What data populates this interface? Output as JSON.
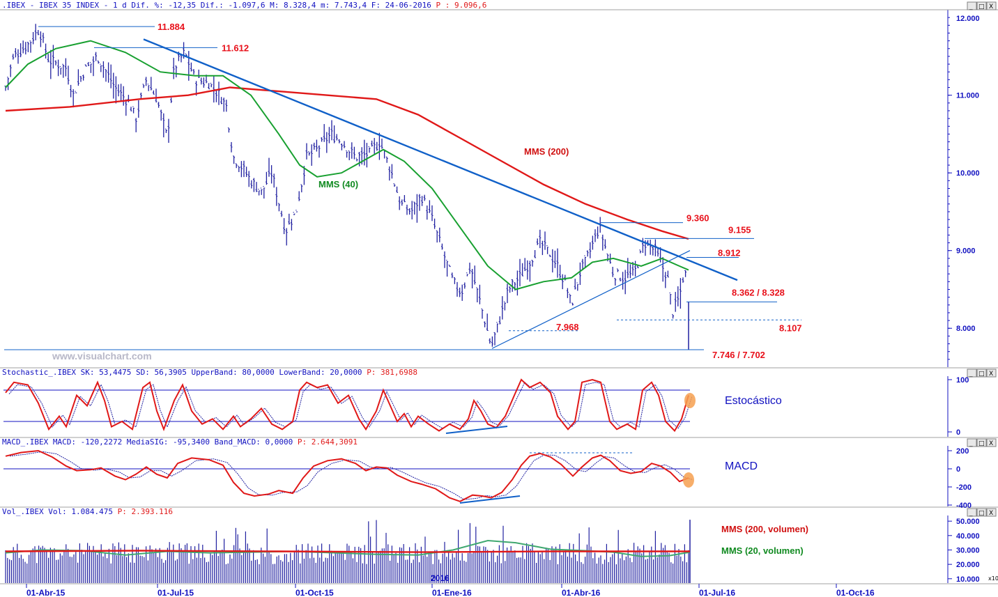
{
  "header": {
    "price": ".IBEX - IBEX 35 INDEX -  1 d Dif. %: -12,35 Dif.: -1.097,6 M: 8.328,4 m: 7.743,4 F: 24-06-2016",
    "price_p": "P : 9.096,6",
    "stoch": "Stochastic_.IBEX SK: 53,4475 SD: 56,3905 UpperBand: 80,0000 LowerBand: 20,0000",
    "stoch_p": "P: 381,6988",
    "macd": "MACD_.IBEX MACD: -120,2272 MediaSIG: -95,3400 Band_MACD: 0,0000",
    "macd_p": "P: 2.644,3091",
    "vol": "Vol_.IBEX Vol: 1.084.475",
    "vol_p": "P: 2.393.116"
  },
  "watermark": "www.visualchart.com",
  "year_label": "2016",
  "window_buttons": [
    "_",
    "□",
    "X"
  ],
  "corner_label": "x10",
  "chart_data": [
    {
      "type": "line",
      "title": ".IBEX - IBEX 35 INDEX",
      "y_ticks": [
        "8.000",
        "9.000",
        "10.000",
        "11.000"
      ],
      "y_top_partial": "12.000",
      "ylim": [
        7500,
        12100
      ],
      "x_ticks": [
        "01-Abr-15",
        "01-Jul-15",
        "01-Oct-15",
        "01-Ene-16",
        "01-Abr-16",
        "01-Jul-16",
        "01-Oct-16"
      ],
      "levels": [
        {
          "label": "11.884",
          "value": 11884
        },
        {
          "label": "11.612",
          "value": 11612
        },
        {
          "label": "9.360",
          "value": 9360
        },
        {
          "label": "9.155",
          "value": 9155
        },
        {
          "label": "8.912",
          "value": 8912
        },
        {
          "label": "8.362 / 8.328",
          "value": 8340
        },
        {
          "label": "8.107",
          "value": 8107
        },
        {
          "label": "7.968",
          "value": 7968
        },
        {
          "label": "7.746 / 7.702",
          "value": 7724
        }
      ],
      "annotations": {
        "mms200": "MMS (200)",
        "mms40": "MMS (40)"
      },
      "series": [
        {
          "name": "MMS (200)",
          "color": "#e01818"
        },
        {
          "name": "MMS (40)",
          "color": "#18a030"
        },
        {
          "name": "IBEX",
          "color": "#2020a0",
          "style": "ohlc-bars"
        }
      ],
      "trendline_color": "#1060c8"
    },
    {
      "type": "line",
      "title": "Stochastic",
      "label": "Estocástico",
      "y_ticks": [
        "100",
        "0"
      ],
      "bands": [
        80,
        20
      ],
      "ylim": [
        0,
        100
      ],
      "series": [
        {
          "name": "SK",
          "color": "#e01818"
        },
        {
          "name": "SD",
          "color": "#2020a0"
        }
      ]
    },
    {
      "type": "line",
      "title": "MACD",
      "label": "MACD",
      "y_ticks": [
        "200",
        "0",
        "-200",
        "-400"
      ],
      "ylim": [
        -400,
        200
      ],
      "series": [
        {
          "name": "MACD",
          "color": "#e01818"
        },
        {
          "name": "MediaSIG",
          "color": "#2020a0"
        }
      ]
    },
    {
      "type": "bar",
      "title": "Vol",
      "y_ticks": [
        "50.000",
        "40.000",
        "30.000",
        "20.000",
        "10.000"
      ],
      "ylim": [
        7000,
        52000
      ],
      "annotations": {
        "mms200v": "MMS (200, volumen)",
        "mms20v": "MMS (20, volumen)"
      },
      "series": [
        {
          "name": "Vol",
          "color": "#2020a0"
        },
        {
          "name": "MMS (200, volumen)",
          "color": "#e01818"
        },
        {
          "name": "MMS (20, volumen)",
          "color": "#40a870"
        }
      ]
    }
  ]
}
